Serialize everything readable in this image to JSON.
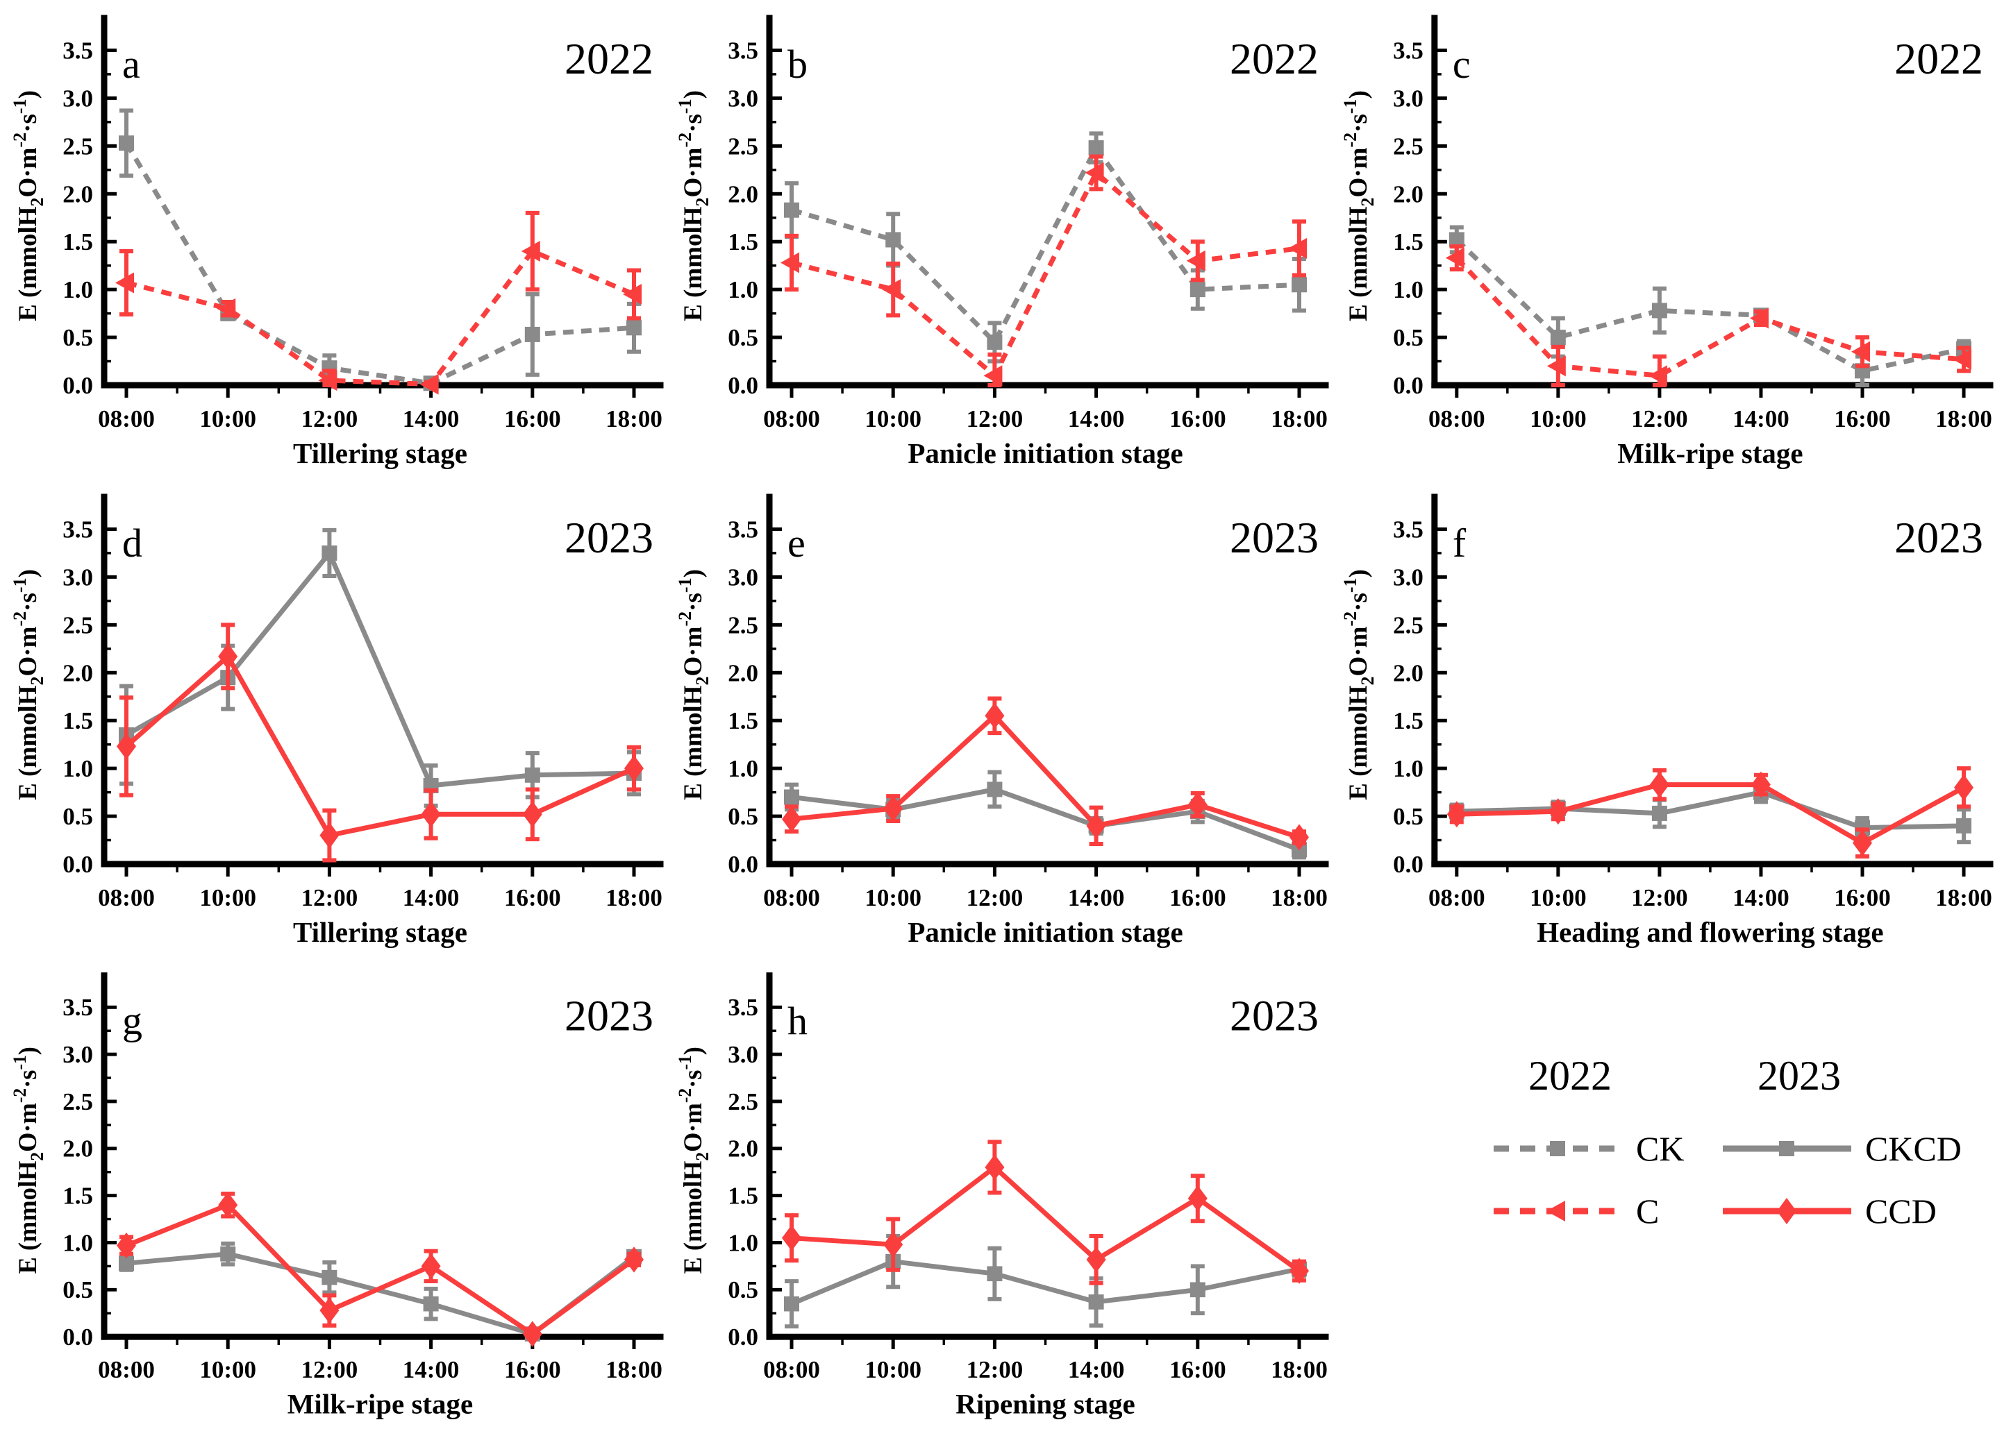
{
  "colors": {
    "gray": "#8a8a8a",
    "red": "#fa3e3e",
    "axis": "#000000"
  },
  "axes": {
    "y_tick_labels": [
      "0.0",
      "0.5",
      "1.0",
      "1.5",
      "2.0",
      "2.5",
      "3.0",
      "3.5"
    ],
    "ylim": [
      0,
      3.75
    ],
    "y_major_step": 0.5,
    "y_minor_step": 0.25,
    "y_label_parts": [
      {
        "t": "E (mmolH"
      },
      {
        "t": "2",
        "s": "sub"
      },
      {
        "t": "O·m"
      },
      {
        "t": "-2",
        "s": "sup"
      },
      {
        "t": "·s"
      },
      {
        "t": "-1",
        "s": "sup"
      },
      {
        "t": ")"
      }
    ]
  },
  "chart_data": [
    {
      "type": "line",
      "panel": "a",
      "year": "2022",
      "stage": "Tillering stage",
      "x": [
        "08:00",
        "10:00",
        "12:00",
        "14:00",
        "16:00",
        "18:00"
      ],
      "series": [
        {
          "name": "CK",
          "color": "gray",
          "line": "dashed",
          "marker": "square",
          "values": [
            2.53,
            0.75,
            0.18,
            0.02,
            0.53,
            0.6
          ],
          "errors": [
            0.34,
            0.06,
            0.13,
            0.02,
            0.42,
            0.25
          ]
        },
        {
          "name": "C",
          "color": "red",
          "line": "dashed",
          "marker": "triangle-left",
          "values": [
            1.07,
            0.8,
            0.05,
            0.01,
            1.4,
            0.95
          ],
          "errors": [
            0.33,
            0.07,
            0.1,
            0.02,
            0.4,
            0.25
          ]
        }
      ]
    },
    {
      "type": "line",
      "panel": "b",
      "year": "2022",
      "stage": "Panicle initiation stage",
      "x": [
        "08:00",
        "10:00",
        "12:00",
        "14:00",
        "16:00",
        "18:00"
      ],
      "series": [
        {
          "name": "CK",
          "color": "gray",
          "line": "dashed",
          "marker": "square",
          "values": [
            1.83,
            1.52,
            0.45,
            2.48,
            1.0,
            1.05
          ],
          "errors": [
            0.28,
            0.27,
            0.2,
            0.15,
            0.2,
            0.27
          ]
        },
        {
          "name": "C",
          "color": "red",
          "line": "dashed",
          "marker": "triangle-left",
          "values": [
            1.28,
            1.0,
            0.1,
            2.22,
            1.3,
            1.43
          ],
          "errors": [
            0.28,
            0.27,
            0.22,
            0.17,
            0.2,
            0.28
          ]
        }
      ]
    },
    {
      "type": "line",
      "panel": "c",
      "year": "2022",
      "stage": "Milk-ripe stage",
      "x": [
        "08:00",
        "10:00",
        "12:00",
        "14:00",
        "16:00",
        "18:00"
      ],
      "series": [
        {
          "name": "CK",
          "color": "gray",
          "line": "dashed",
          "marker": "square",
          "values": [
            1.52,
            0.5,
            0.78,
            0.73,
            0.15,
            0.38
          ],
          "errors": [
            0.13,
            0.2,
            0.23,
            0.05,
            0.15,
            0.08
          ]
        },
        {
          "name": "C",
          "color": "red",
          "line": "dashed",
          "marker": "triangle-left",
          "values": [
            1.33,
            0.2,
            0.1,
            0.7,
            0.35,
            0.27
          ],
          "errors": [
            0.12,
            0.2,
            0.2,
            0.07,
            0.15,
            0.12
          ]
        }
      ]
    },
    {
      "type": "line",
      "panel": "d",
      "year": "2023",
      "stage": "Tillering stage",
      "x": [
        "08:00",
        "10:00",
        "12:00",
        "14:00",
        "16:00",
        "18:00"
      ],
      "series": [
        {
          "name": "CKCD",
          "color": "gray",
          "line": "solid",
          "marker": "square",
          "values": [
            1.35,
            1.95,
            3.25,
            0.82,
            0.93,
            0.95
          ],
          "errors": [
            0.51,
            0.33,
            0.24,
            0.21,
            0.23,
            0.22
          ]
        },
        {
          "name": "CCD",
          "color": "red",
          "line": "solid",
          "marker": "diamond",
          "values": [
            1.23,
            2.17,
            0.3,
            0.52,
            0.52,
            1.0
          ],
          "errors": [
            0.51,
            0.33,
            0.26,
            0.25,
            0.26,
            0.22
          ]
        }
      ]
    },
    {
      "type": "line",
      "panel": "e",
      "year": "2023",
      "stage": "Panicle initiation stage",
      "x": [
        "08:00",
        "10:00",
        "12:00",
        "14:00",
        "16:00",
        "18:00"
      ],
      "series": [
        {
          "name": "CKCD",
          "color": "gray",
          "line": "solid",
          "marker": "square",
          "values": [
            0.7,
            0.57,
            0.78,
            0.4,
            0.55,
            0.15
          ],
          "errors": [
            0.13,
            0.1,
            0.18,
            0.08,
            0.11,
            0.08
          ]
        },
        {
          "name": "CCD",
          "color": "red",
          "line": "solid",
          "marker": "diamond",
          "values": [
            0.47,
            0.58,
            1.55,
            0.4,
            0.62,
            0.28
          ],
          "errors": [
            0.13,
            0.13,
            0.18,
            0.19,
            0.12,
            0.06
          ]
        }
      ]
    },
    {
      "type": "line",
      "panel": "f",
      "year": "2023",
      "stage": "Heading and flowering stage",
      "x": [
        "08:00",
        "10:00",
        "12:00",
        "14:00",
        "16:00",
        "18:00"
      ],
      "series": [
        {
          "name": "CKCD",
          "color": "gray",
          "line": "solid",
          "marker": "square",
          "values": [
            0.55,
            0.58,
            0.53,
            0.75,
            0.38,
            0.4
          ],
          "errors": [
            0.07,
            0.07,
            0.14,
            0.1,
            0.1,
            0.17
          ]
        },
        {
          "name": "CCD",
          "color": "red",
          "line": "solid",
          "marker": "diamond",
          "values": [
            0.52,
            0.55,
            0.83,
            0.83,
            0.22,
            0.8
          ],
          "errors": [
            0.08,
            0.08,
            0.15,
            0.1,
            0.14,
            0.2
          ]
        }
      ]
    },
    {
      "type": "line",
      "panel": "g",
      "year": "2023",
      "stage": "Milk-ripe stage",
      "x": [
        "08:00",
        "10:00",
        "12:00",
        "14:00",
        "16:00",
        "18:00"
      ],
      "series": [
        {
          "name": "CKCD",
          "color": "gray",
          "line": "solid",
          "marker": "square",
          "values": [
            0.78,
            0.88,
            0.63,
            0.35,
            0.03,
            0.85
          ],
          "errors": [
            0.07,
            0.11,
            0.16,
            0.16,
            0.05,
            0.06
          ]
        },
        {
          "name": "CCD",
          "color": "red",
          "line": "solid",
          "marker": "diamond",
          "values": [
            0.97,
            1.4,
            0.28,
            0.75,
            0.03,
            0.82
          ],
          "errors": [
            0.09,
            0.12,
            0.16,
            0.16,
            0.05,
            0.06
          ]
        }
      ]
    },
    {
      "type": "line",
      "panel": "h",
      "year": "2023",
      "stage": "Ripening  stage",
      "x": [
        "08:00",
        "10:00",
        "12:00",
        "14:00",
        "16:00",
        "18:00"
      ],
      "series": [
        {
          "name": "CKCD",
          "color": "gray",
          "line": "solid",
          "marker": "square",
          "values": [
            0.35,
            0.8,
            0.67,
            0.37,
            0.5,
            0.72
          ],
          "errors": [
            0.24,
            0.27,
            0.27,
            0.25,
            0.25,
            0.07
          ]
        },
        {
          "name": "CCD",
          "color": "red",
          "line": "solid",
          "marker": "diamond",
          "values": [
            1.05,
            0.98,
            1.8,
            0.82,
            1.47,
            0.7
          ],
          "errors": [
            0.24,
            0.27,
            0.27,
            0.25,
            0.24,
            0.1
          ]
        }
      ]
    }
  ],
  "legend": {
    "groups": [
      {
        "year": "2022",
        "entries": [
          {
            "label": "CK",
            "color": "gray",
            "line": "dashed",
            "marker": "square"
          },
          {
            "label": "C",
            "color": "red",
            "line": "dashed",
            "marker": "triangle-left"
          }
        ]
      },
      {
        "year": "2023",
        "entries": [
          {
            "label": "CKCD",
            "color": "gray",
            "line": "solid",
            "marker": "square"
          },
          {
            "label": "CCD",
            "color": "red",
            "line": "solid",
            "marker": "diamond"
          }
        ]
      }
    ]
  }
}
